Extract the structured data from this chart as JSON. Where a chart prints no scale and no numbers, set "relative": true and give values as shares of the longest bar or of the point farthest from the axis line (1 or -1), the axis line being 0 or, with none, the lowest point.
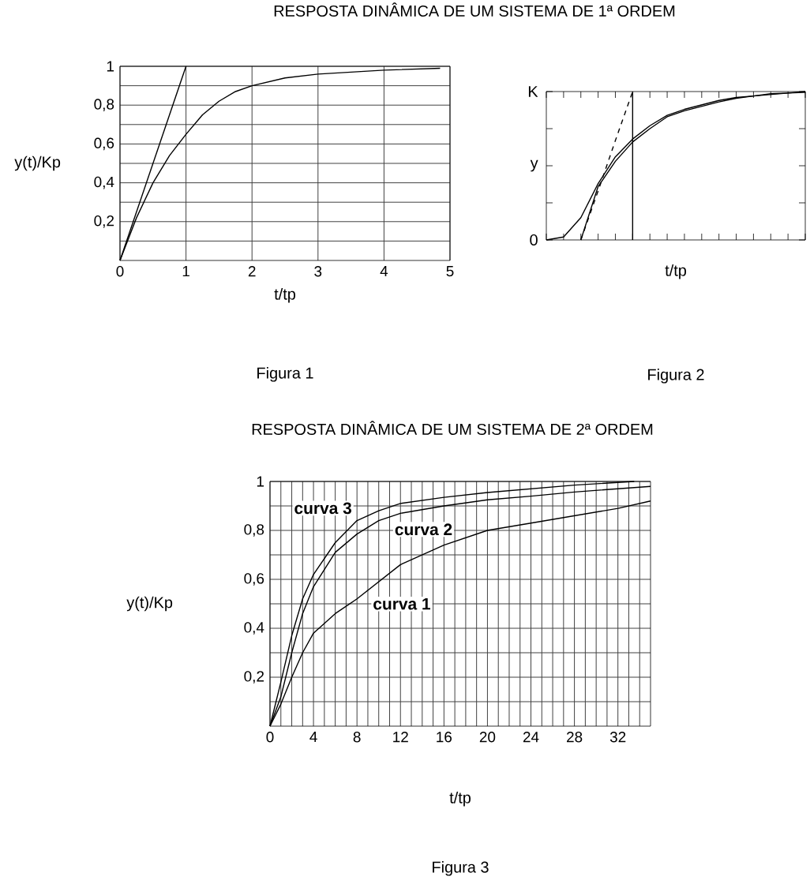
{
  "chart_data": [
    {
      "type": "line",
      "title": "RESPOSTA DINÂMICA DE UM SISTEMA DE 1ª ORDEM",
      "xlabel": "t/tp",
      "ylabel": "y(t)/Kp",
      "annotations": [
        "Figura 1"
      ],
      "grid": true,
      "xlim": [
        0,
        5
      ],
      "ylim": [
        0,
        1
      ],
      "xticks": [
        0,
        1,
        2,
        3,
        4,
        5
      ],
      "yticks": [
        {
          "value": 0.1,
          "label": null
        },
        {
          "value": 0.2,
          "label": "0,2"
        },
        {
          "value": 0.3,
          "label": null
        },
        {
          "value": 0.4,
          "label": "0,4"
        },
        {
          "value": 0.5,
          "label": null
        },
        {
          "value": 0.6,
          "label": "0,6"
        },
        {
          "value": 0.7,
          "label": null
        },
        {
          "value": 0.8,
          "label": "0,8"
        },
        {
          "value": 0.9,
          "label": null
        },
        1
      ],
      "series": [
        {
          "color": "#000000",
          "x": [
            0,
            1
          ],
          "values": [
            0,
            1
          ]
        },
        {
          "color": "#000000",
          "x": [
            0,
            0.25,
            0.5,
            0.75,
            1,
            1.25,
            1.5,
            1.75,
            2,
            2.5,
            3,
            3.5,
            4,
            4.85
          ],
          "values": [
            0,
            0.22,
            0.4,
            0.54,
            0.65,
            0.75,
            0.82,
            0.87,
            0.9,
            0.94,
            0.96,
            0.97,
            0.98,
            0.99
          ]
        }
      ]
    },
    {
      "type": "line",
      "xlabel": "t/tp",
      "annotations": [
        "K",
        "y",
        "0",
        "Figura 2"
      ],
      "relative": true,
      "categories": [
        null,
        null,
        null,
        null,
        null,
        null,
        null,
        null,
        null,
        null,
        null,
        null,
        null,
        null,
        null,
        null
      ],
      "series": [
        {
          "color": "#000000",
          "values": [
            0,
            0.02,
            0.15,
            0.38,
            0.56,
            0.68,
            0.77,
            0.84,
            0.88,
            0.91,
            0.94,
            0.96,
            0.97,
            0.985,
            0.99,
            1
          ]
        },
        {
          "color": "#000000",
          "values": [
            null,
            null,
            0,
            0.36,
            0.53,
            0.66,
            0.75,
            0.83,
            0.87,
            0.9,
            0.93,
            0.955,
            0.97,
            0.98,
            0.99,
            0.995
          ]
        },
        {
          "color": "#000000",
          "line_style": "dashed",
          "values": [
            null,
            null,
            0,
            0.33,
            0.67,
            1,
            null,
            null,
            null,
            null,
            null,
            null,
            null,
            null,
            null,
            null
          ]
        }
      ]
    },
    {
      "type": "line",
      "title": "RESPOSTA DINÂMICA DE UM SISTEMA DE 2ª ORDEM",
      "xlabel": "t/tp",
      "ylabel": "y(t)/Kp",
      "grid": true,
      "annotations": [
        {
          "text": "curva 3",
          "x": 8,
          "y": 0.84
        },
        {
          "text": "curva 2",
          "x": 11,
          "y": 0.855
        },
        {
          "text": "curva 1",
          "x": 9,
          "y": 0.55
        },
        "Figura 3"
      ],
      "xlim": [
        0,
        35
      ],
      "ylim": [
        0,
        1
      ],
      "xticks": [
        0,
        {
          "value": 1,
          "label": null
        },
        {
          "value": 2,
          "label": null
        },
        {
          "value": 3,
          "label": null
        },
        4,
        {
          "value": 5,
          "label": null
        },
        {
          "value": 6,
          "label": null
        },
        {
          "value": 7,
          "label": null
        },
        8,
        {
          "value": 9,
          "label": null
        },
        {
          "value": 10,
          "label": null
        },
        {
          "value": 11,
          "label": null
        },
        12,
        {
          "value": 13,
          "label": null
        },
        {
          "value": 14,
          "label": null
        },
        {
          "value": 15,
          "label": null
        },
        16,
        {
          "value": 17,
          "label": null
        },
        {
          "value": 18,
          "label": null
        },
        {
          "value": 19,
          "label": null
        },
        20,
        {
          "value": 21,
          "label": null
        },
        {
          "value": 22,
          "label": null
        },
        {
          "value": 23,
          "label": null
        },
        24,
        {
          "value": 25,
          "label": null
        },
        {
          "value": 26,
          "label": null
        },
        {
          "value": 27,
          "label": null
        },
        28,
        {
          "value": 29,
          "label": null
        },
        {
          "value": 30,
          "label": null
        },
        {
          "value": 31,
          "label": null
        },
        32,
        {
          "value": 33,
          "label": null
        },
        {
          "value": 34,
          "label": null
        }
      ],
      "yticks": [
        {
          "value": 0.1,
          "label": null
        },
        {
          "value": 0.2,
          "label": "0,2"
        },
        {
          "value": 0.3,
          "label": null
        },
        {
          "value": 0.4,
          "label": "0,4"
        },
        {
          "value": 0.5,
          "label": null
        },
        {
          "value": 0.6,
          "label": "0,6"
        },
        {
          "value": 0.7,
          "label": null
        },
        {
          "value": 0.8,
          "label": "0,8"
        },
        {
          "value": 0.9,
          "label": null
        },
        1
      ],
      "series": [
        {
          "color": "#000000",
          "x": [
            0,
            1,
            2,
            3,
            4,
            6,
            8,
            10,
            12,
            16,
            20,
            24,
            28,
            33.5
          ],
          "values": [
            0,
            0.18,
            0.37,
            0.52,
            0.62,
            0.75,
            0.84,
            0.88,
            0.91,
            0.935,
            0.955,
            0.97,
            0.985,
            1.0
          ]
        },
        {
          "color": "#000000",
          "x": [
            0,
            1,
            2,
            3,
            4,
            6,
            8,
            10,
            12,
            16,
            20,
            24,
            28,
            35
          ],
          "values": [
            0,
            0.12,
            0.3,
            0.46,
            0.57,
            0.71,
            0.785,
            0.84,
            0.87,
            0.9,
            0.925,
            0.94,
            0.957,
            0.98
          ]
        },
        {
          "color": "#000000",
          "x": [
            0,
            1,
            2,
            3,
            4,
            6,
            8,
            12,
            16,
            20,
            24,
            28,
            32,
            35
          ],
          "values": [
            0,
            0.09,
            0.2,
            0.3,
            0.38,
            0.46,
            0.52,
            0.66,
            0.74,
            0.8,
            0.83,
            0.86,
            0.89,
            0.92
          ]
        }
      ]
    }
  ]
}
